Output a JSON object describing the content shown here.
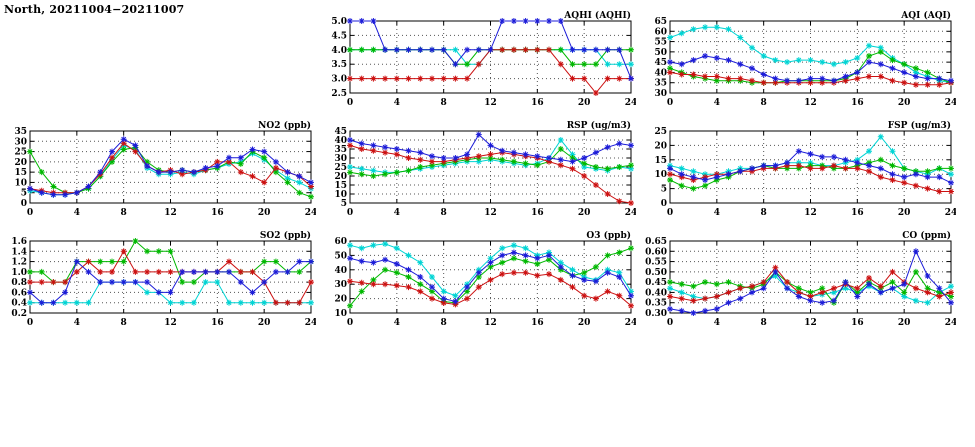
{
  "page": {
    "title": "North, 20211004−20211007"
  },
  "series_colors": {
    "green": "#00b800",
    "blue": "#1c1cd8",
    "red": "#cc1111",
    "cyan": "#00d4d4"
  },
  "x": [
    0,
    1,
    2,
    3,
    4,
    5,
    6,
    7,
    8,
    9,
    10,
    11,
    12,
    13,
    14,
    15,
    16,
    17,
    18,
    19,
    20,
    21,
    22,
    23,
    24
  ],
  "x_ticks": [
    0,
    4,
    8,
    12,
    16,
    20,
    24
  ],
  "x_max": 24,
  "chart_data": [
    {
      "key": "aqhi",
      "type": "line",
      "title": "AQHI (AQHI)",
      "grid": {
        "row": 0,
        "col": 1
      },
      "ylim": [
        2.5,
        5.0
      ],
      "yticks": [
        2.5,
        3.0,
        3.5,
        4.0,
        4.5,
        5.0
      ],
      "decimals": 1,
      "series": [
        {
          "name": "series-cyan",
          "color": "cyan",
          "values": [
            4,
            4,
            4,
            4,
            4,
            4,
            4,
            4,
            4,
            4,
            3.5,
            3.5,
            4,
            4,
            4,
            4,
            4,
            4,
            4,
            4,
            4,
            4,
            3.5,
            3.5,
            3.5
          ]
        },
        {
          "name": "series-green",
          "color": "green",
          "values": [
            4,
            4,
            4,
            4,
            4,
            4,
            4,
            4,
            4,
            3.5,
            3.5,
            4,
            4,
            4,
            4,
            4,
            4,
            4,
            4,
            3.5,
            3.5,
            3.5,
            4,
            4,
            4
          ]
        },
        {
          "name": "series-red",
          "color": "red",
          "values": [
            3,
            3,
            3,
            3,
            3,
            3,
            3,
            3,
            3,
            3,
            3,
            3.5,
            4,
            4,
            4,
            4,
            4,
            4,
            3.5,
            3,
            3,
            2.5,
            3,
            3,
            3
          ]
        },
        {
          "name": "series-blue",
          "color": "blue",
          "values": [
            5,
            5,
            5,
            4,
            4,
            4,
            4,
            4,
            4,
            3.5,
            4,
            4,
            4,
            5,
            5,
            5,
            5,
            5,
            5,
            4,
            4,
            4,
            4,
            4,
            3
          ]
        }
      ]
    },
    {
      "key": "aqi",
      "type": "line",
      "title": "AQI (AQI)",
      "grid": {
        "row": 0,
        "col": 2
      },
      "ylim": [
        30,
        65
      ],
      "yticks": [
        30,
        35,
        40,
        45,
        50,
        55,
        60,
        65
      ],
      "decimals": 0,
      "series": [
        {
          "name": "series-cyan",
          "color": "cyan",
          "values": [
            57,
            59,
            61,
            62,
            62,
            61,
            57,
            52,
            48,
            46,
            45,
            46,
            46,
            45,
            44,
            45,
            47,
            53,
            52,
            47,
            44,
            40,
            38,
            36,
            35
          ]
        },
        {
          "name": "series-green",
          "color": "green",
          "values": [
            42,
            40,
            38,
            37,
            36,
            36,
            36,
            35,
            35,
            35,
            36,
            36,
            36,
            36,
            36,
            37,
            40,
            48,
            50,
            46,
            44,
            42,
            40,
            37,
            35
          ]
        },
        {
          "name": "series-red",
          "color": "red",
          "values": [
            40,
            39,
            39,
            38,
            38,
            37,
            37,
            36,
            35,
            35,
            35,
            35,
            35,
            35,
            35,
            36,
            37,
            38,
            38,
            36,
            35,
            34,
            34,
            34,
            35
          ]
        },
        {
          "name": "series-blue",
          "color": "blue",
          "values": [
            45,
            44,
            46,
            48,
            47,
            46,
            44,
            42,
            39,
            37,
            36,
            36,
            37,
            37,
            36,
            38,
            40,
            45,
            44,
            42,
            40,
            38,
            37,
            37,
            36
          ]
        }
      ]
    },
    {
      "key": "no2",
      "type": "line",
      "title": "NO2 (ppb)",
      "grid": {
        "row": 1,
        "col": 0
      },
      "ylim": [
        0,
        35
      ],
      "yticks": [
        0,
        5,
        10,
        15,
        20,
        25,
        30,
        35
      ],
      "decimals": 0,
      "series": [
        {
          "name": "series-cyan",
          "color": "cyan",
          "values": [
            6,
            5,
            4,
            4,
            5,
            7,
            13,
            21,
            28,
            26,
            17,
            14,
            14,
            15,
            14,
            16,
            17,
            19,
            20,
            24,
            21,
            16,
            12,
            10,
            7
          ]
        },
        {
          "name": "series-green",
          "color": "green",
          "values": [
            25,
            15,
            8,
            5,
            5,
            7,
            13,
            20,
            26,
            27,
            20,
            16,
            15,
            16,
            15,
            16,
            17,
            20,
            19,
            25,
            22,
            15,
            10,
            5,
            3
          ]
        },
        {
          "name": "series-red",
          "color": "red",
          "values": [
            7,
            6,
            5,
            5,
            5,
            8,
            14,
            22,
            29,
            25,
            18,
            15,
            16,
            14,
            15,
            16,
            20,
            20,
            15,
            13,
            10,
            17,
            15,
            13,
            8
          ]
        },
        {
          "name": "series-blue",
          "color": "blue",
          "values": [
            7,
            5,
            4,
            4,
            5,
            8,
            15,
            25,
            31,
            28,
            18,
            15,
            15,
            16,
            15,
            17,
            18,
            22,
            22,
            26,
            25,
            20,
            15,
            13,
            10
          ]
        }
      ]
    },
    {
      "key": "rsp",
      "type": "line",
      "title": "RSP (ug/m3)",
      "grid": {
        "row": 1,
        "col": 1
      },
      "ylim": [
        5,
        45
      ],
      "yticks": [
        5,
        10,
        15,
        20,
        25,
        30,
        35,
        40,
        45
      ],
      "decimals": 0,
      "series": [
        {
          "name": "series-cyan",
          "color": "cyan",
          "values": [
            25,
            24,
            23,
            22,
            22,
            23,
            24,
            25,
            26,
            27,
            28,
            28,
            29,
            28,
            27,
            26,
            27,
            30,
            40,
            32,
            25,
            24,
            23,
            25,
            24
          ]
        },
        {
          "name": "series-green",
          "color": "green",
          "values": [
            22,
            21,
            20,
            21,
            22,
            23,
            25,
            26,
            27,
            28,
            29,
            30,
            30,
            29,
            28,
            27,
            26,
            28,
            35,
            30,
            27,
            25,
            24,
            25,
            26
          ]
        },
        {
          "name": "series-red",
          "color": "red",
          "values": [
            37,
            35,
            34,
            33,
            32,
            30,
            29,
            28,
            28,
            29,
            30,
            31,
            32,
            33,
            32,
            31,
            30,
            28,
            26,
            24,
            20,
            15,
            10,
            6,
            5
          ]
        },
        {
          "name": "series-blue",
          "color": "blue",
          "values": [
            40,
            38,
            37,
            36,
            35,
            34,
            33,
            31,
            30,
            30,
            32,
            43,
            37,
            34,
            33,
            32,
            31,
            30,
            29,
            28,
            30,
            33,
            36,
            38,
            37
          ]
        }
      ]
    },
    {
      "key": "fsp",
      "type": "line",
      "title": "FSP (ug/m3)",
      "grid": {
        "row": 1,
        "col": 2
      },
      "ylim": [
        0,
        25
      ],
      "yticks": [
        0,
        5,
        10,
        15,
        20,
        25
      ],
      "decimals": 0,
      "series": [
        {
          "name": "series-cyan",
          "color": "cyan",
          "values": [
            13,
            12,
            11,
            10,
            10,
            11,
            12,
            12,
            13,
            13,
            14,
            14,
            14,
            13,
            13,
            14,
            15,
            18,
            23,
            18,
            12,
            11,
            10,
            12,
            10
          ]
        },
        {
          "name": "series-green",
          "color": "green",
          "values": [
            8,
            6,
            5,
            6,
            8,
            9,
            11,
            12,
            13,
            12,
            12,
            12,
            13,
            13,
            12,
            12,
            13,
            14,
            15,
            13,
            12,
            11,
            11,
            12,
            12
          ]
        },
        {
          "name": "series-red",
          "color": "red",
          "values": [
            10,
            9,
            8,
            9,
            10,
            10,
            11,
            11,
            12,
            12,
            13,
            13,
            12,
            12,
            13,
            12,
            12,
            11,
            9,
            8,
            7,
            6,
            5,
            4,
            4
          ]
        },
        {
          "name": "series-blue",
          "color": "blue",
          "values": [
            12,
            10,
            9,
            8,
            9,
            10,
            11,
            12,
            13,
            13,
            14,
            18,
            17,
            16,
            16,
            15,
            14,
            13,
            12,
            10,
            9,
            10,
            9,
            9,
            7
          ]
        }
      ]
    },
    {
      "key": "so2",
      "type": "line",
      "title": "SO2 (ppb)",
      "grid": {
        "row": 2,
        "col": 0
      },
      "ylim": [
        0.2,
        1.6
      ],
      "yticks": [
        0.2,
        0.4,
        0.6,
        0.8,
        1.0,
        1.2,
        1.4,
        1.6
      ],
      "decimals": 1,
      "series": [
        {
          "name": "series-cyan",
          "color": "cyan",
          "values": [
            0.4,
            0.4,
            0.4,
            0.4,
            0.4,
            0.4,
            0.8,
            0.8,
            0.8,
            0.8,
            0.6,
            0.6,
            0.4,
            0.4,
            0.4,
            0.8,
            0.8,
            0.4,
            0.4,
            0.4,
            0.4,
            0.4,
            0.4,
            0.4,
            0.4
          ]
        },
        {
          "name": "series-green",
          "color": "green",
          "values": [
            1.0,
            1.0,
            0.8,
            0.8,
            1.2,
            1.2,
            1.2,
            1.2,
            1.2,
            1.6,
            1.4,
            1.4,
            1.4,
            0.8,
            0.8,
            1.0,
            1.0,
            1.0,
            1.0,
            1.0,
            1.2,
            1.2,
            1.0,
            1.0,
            1.2
          ]
        },
        {
          "name": "series-red",
          "color": "red",
          "values": [
            0.8,
            0.8,
            0.8,
            0.8,
            1.0,
            1.2,
            1.0,
            1.0,
            1.4,
            1.0,
            1.0,
            1.0,
            1.0,
            1.0,
            1.0,
            1.0,
            1.0,
            1.2,
            1.0,
            1.0,
            0.8,
            0.4,
            0.4,
            0.4,
            0.8
          ]
        },
        {
          "name": "series-blue",
          "color": "blue",
          "values": [
            0.6,
            0.4,
            0.4,
            0.6,
            1.2,
            1.0,
            0.8,
            0.8,
            0.8,
            0.8,
            0.8,
            0.6,
            0.6,
            1.0,
            1.0,
            1.0,
            1.0,
            1.0,
            0.8,
            0.6,
            0.8,
            1.0,
            1.0,
            1.2,
            1.2
          ]
        }
      ]
    },
    {
      "key": "o3",
      "type": "line",
      "title": "O3 (ppb)",
      "grid": {
        "row": 2,
        "col": 1
      },
      "ylim": [
        10,
        60
      ],
      "yticks": [
        10,
        20,
        30,
        40,
        50,
        60
      ],
      "decimals": 0,
      "series": [
        {
          "name": "series-cyan",
          "color": "cyan",
          "values": [
            57,
            55,
            57,
            58,
            55,
            50,
            45,
            35,
            25,
            22,
            30,
            40,
            48,
            55,
            57,
            55,
            50,
            52,
            45,
            40,
            35,
            33,
            40,
            38,
            25
          ]
        },
        {
          "name": "series-green",
          "color": "green",
          "values": [
            15,
            25,
            33,
            40,
            38,
            35,
            30,
            25,
            18,
            17,
            25,
            35,
            42,
            45,
            48,
            46,
            44,
            47,
            40,
            36,
            38,
            42,
            50,
            52,
            55
          ]
        },
        {
          "name": "series-red",
          "color": "red",
          "values": [
            32,
            31,
            30,
            30,
            29,
            28,
            25,
            20,
            17,
            16,
            20,
            28,
            33,
            37,
            38,
            38,
            36,
            37,
            33,
            28,
            22,
            20,
            25,
            22,
            15
          ]
        },
        {
          "name": "series-blue",
          "color": "blue",
          "values": [
            48,
            46,
            45,
            47,
            44,
            40,
            35,
            28,
            20,
            18,
            28,
            38,
            45,
            50,
            52,
            50,
            48,
            50,
            42,
            36,
            33,
            32,
            38,
            35,
            22
          ]
        }
      ]
    },
    {
      "key": "co",
      "type": "line",
      "title": "CO (ppm)",
      "grid": {
        "row": 2,
        "col": 2
      },
      "ylim": [
        0.3,
        0.65
      ],
      "yticks": [
        0.3,
        0.35,
        0.4,
        0.45,
        0.5,
        0.55,
        0.6,
        0.65
      ],
      "decimals": 2,
      "series": [
        {
          "name": "series-cyan",
          "color": "cyan",
          "values": [
            0.42,
            0.4,
            0.38,
            0.37,
            0.38,
            0.4,
            0.42,
            0.43,
            0.45,
            0.48,
            0.42,
            0.4,
            0.38,
            0.39,
            0.4,
            0.42,
            0.4,
            0.43,
            0.4,
            0.42,
            0.38,
            0.36,
            0.35,
            0.4,
            0.43
          ]
        },
        {
          "name": "series-green",
          "color": "green",
          "values": [
            0.45,
            0.44,
            0.43,
            0.45,
            0.44,
            0.45,
            0.43,
            0.42,
            0.44,
            0.5,
            0.45,
            0.42,
            0.4,
            0.42,
            0.35,
            0.45,
            0.4,
            0.45,
            0.42,
            0.45,
            0.4,
            0.5,
            0.42,
            0.4,
            0.38
          ]
        },
        {
          "name": "series-red",
          "color": "red",
          "values": [
            0.38,
            0.37,
            0.36,
            0.37,
            0.38,
            0.4,
            0.42,
            0.43,
            0.45,
            0.52,
            0.45,
            0.4,
            0.38,
            0.4,
            0.42,
            0.44,
            0.42,
            0.47,
            0.43,
            0.5,
            0.45,
            0.42,
            0.4,
            0.38,
            0.4
          ]
        },
        {
          "name": "series-blue",
          "color": "blue",
          "values": [
            0.32,
            0.31,
            0.3,
            0.31,
            0.32,
            0.35,
            0.37,
            0.4,
            0.42,
            0.5,
            0.42,
            0.38,
            0.36,
            0.35,
            0.36,
            0.45,
            0.38,
            0.44,
            0.4,
            0.42,
            0.44,
            0.6,
            0.48,
            0.42,
            0.35
          ]
        }
      ]
    }
  ]
}
